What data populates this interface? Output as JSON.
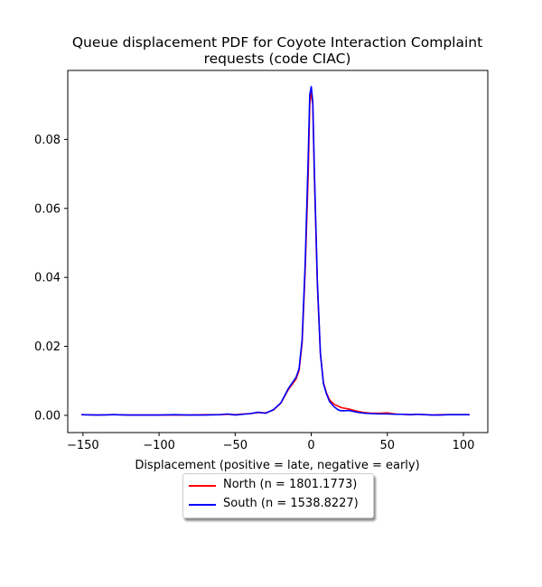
{
  "chart_data": {
    "type": "line",
    "title": "Queue displacement PDF for Coyote Interaction Complaint requests (code CIAC)",
    "title_lines": [
      "Queue displacement PDF for Coyote Interaction Complaint",
      "requests (code CIAC)"
    ],
    "xlabel": "Displacement (positive = late, negative = early)",
    "ylabel": "",
    "xlim": [
      -160,
      116
    ],
    "ylim": [
      -0.005,
      0.1
    ],
    "xticks": [
      -150,
      -100,
      -50,
      0,
      50,
      100
    ],
    "xtick_labels": [
      "−150",
      "−100",
      "−50",
      "0",
      "50",
      "100"
    ],
    "yticks": [
      0.0,
      0.02,
      0.04,
      0.06,
      0.08
    ],
    "ytick_labels": [
      "0.00",
      "0.02",
      "0.04",
      "0.06",
      "0.08"
    ],
    "grid": false,
    "legend_position": "bottom-center-outside",
    "series": [
      {
        "name": "North (n = 1801.1773)",
        "color": "#ff0000",
        "x": [
          -151,
          -140,
          -130,
          -120,
          -110,
          -100,
          -90,
          -80,
          -70,
          -60,
          -55,
          -50,
          -45,
          -40,
          -35,
          -30,
          -25,
          -20,
          -15,
          -10,
          -8,
          -6,
          -4,
          -2,
          -1,
          0,
          1,
          2,
          4,
          6,
          8,
          10,
          12,
          15,
          18,
          20,
          25,
          30,
          35,
          40,
          45,
          50,
          55,
          60,
          65,
          70,
          75,
          80,
          85,
          90,
          95,
          100,
          104
        ],
        "y": [
          0.0002,
          0.0001,
          0.0002,
          0.0001,
          0.0001,
          0.0001,
          0.0001,
          0.0001,
          0.0002,
          0.0002,
          0.0003,
          0.0002,
          0.0004,
          0.0005,
          0.0008,
          0.0007,
          0.0015,
          0.0035,
          0.0075,
          0.0105,
          0.013,
          0.021,
          0.042,
          0.07,
          0.09,
          0.094,
          0.09,
          0.07,
          0.038,
          0.018,
          0.0095,
          0.0065,
          0.0045,
          0.0032,
          0.0026,
          0.0022,
          0.0018,
          0.0012,
          0.0008,
          0.0006,
          0.0006,
          0.0007,
          0.0004,
          0.0003,
          0.0002,
          0.0003,
          0.0002,
          0.0001,
          0.0002,
          0.0002,
          0.0002,
          0.0002,
          0.0002
        ]
      },
      {
        "name": "South (n = 1538.8227)",
        "color": "#0000ff",
        "x": [
          -151,
          -140,
          -130,
          -120,
          -110,
          -100,
          -90,
          -80,
          -70,
          -60,
          -55,
          -50,
          -45,
          -40,
          -35,
          -30,
          -25,
          -20,
          -15,
          -10,
          -8,
          -6,
          -4,
          -2,
          -1,
          0,
          1,
          2,
          4,
          6,
          8,
          10,
          12,
          15,
          18,
          20,
          25,
          30,
          35,
          40,
          45,
          50,
          55,
          60,
          65,
          70,
          75,
          80,
          85,
          90,
          95,
          100,
          104
        ],
        "y": [
          0.0002,
          0.0001,
          0.0002,
          0.0001,
          0.0001,
          0.0001,
          0.0002,
          0.0001,
          0.0001,
          0.0002,
          0.0004,
          0.0001,
          0.0003,
          0.0005,
          0.0009,
          0.0006,
          0.0016,
          0.0036,
          0.0078,
          0.011,
          0.0135,
          0.022,
          0.044,
          0.075,
          0.093,
          0.0953,
          0.091,
          0.072,
          0.039,
          0.018,
          0.0092,
          0.0062,
          0.004,
          0.0025,
          0.0015,
          0.0013,
          0.0014,
          0.0009,
          0.0006,
          0.0005,
          0.0004,
          0.0004,
          0.0003,
          0.0003,
          0.0002,
          0.0003,
          0.0002,
          0.0001,
          0.0001,
          0.0002,
          0.0002,
          0.0002,
          0.0002
        ]
      }
    ]
  }
}
